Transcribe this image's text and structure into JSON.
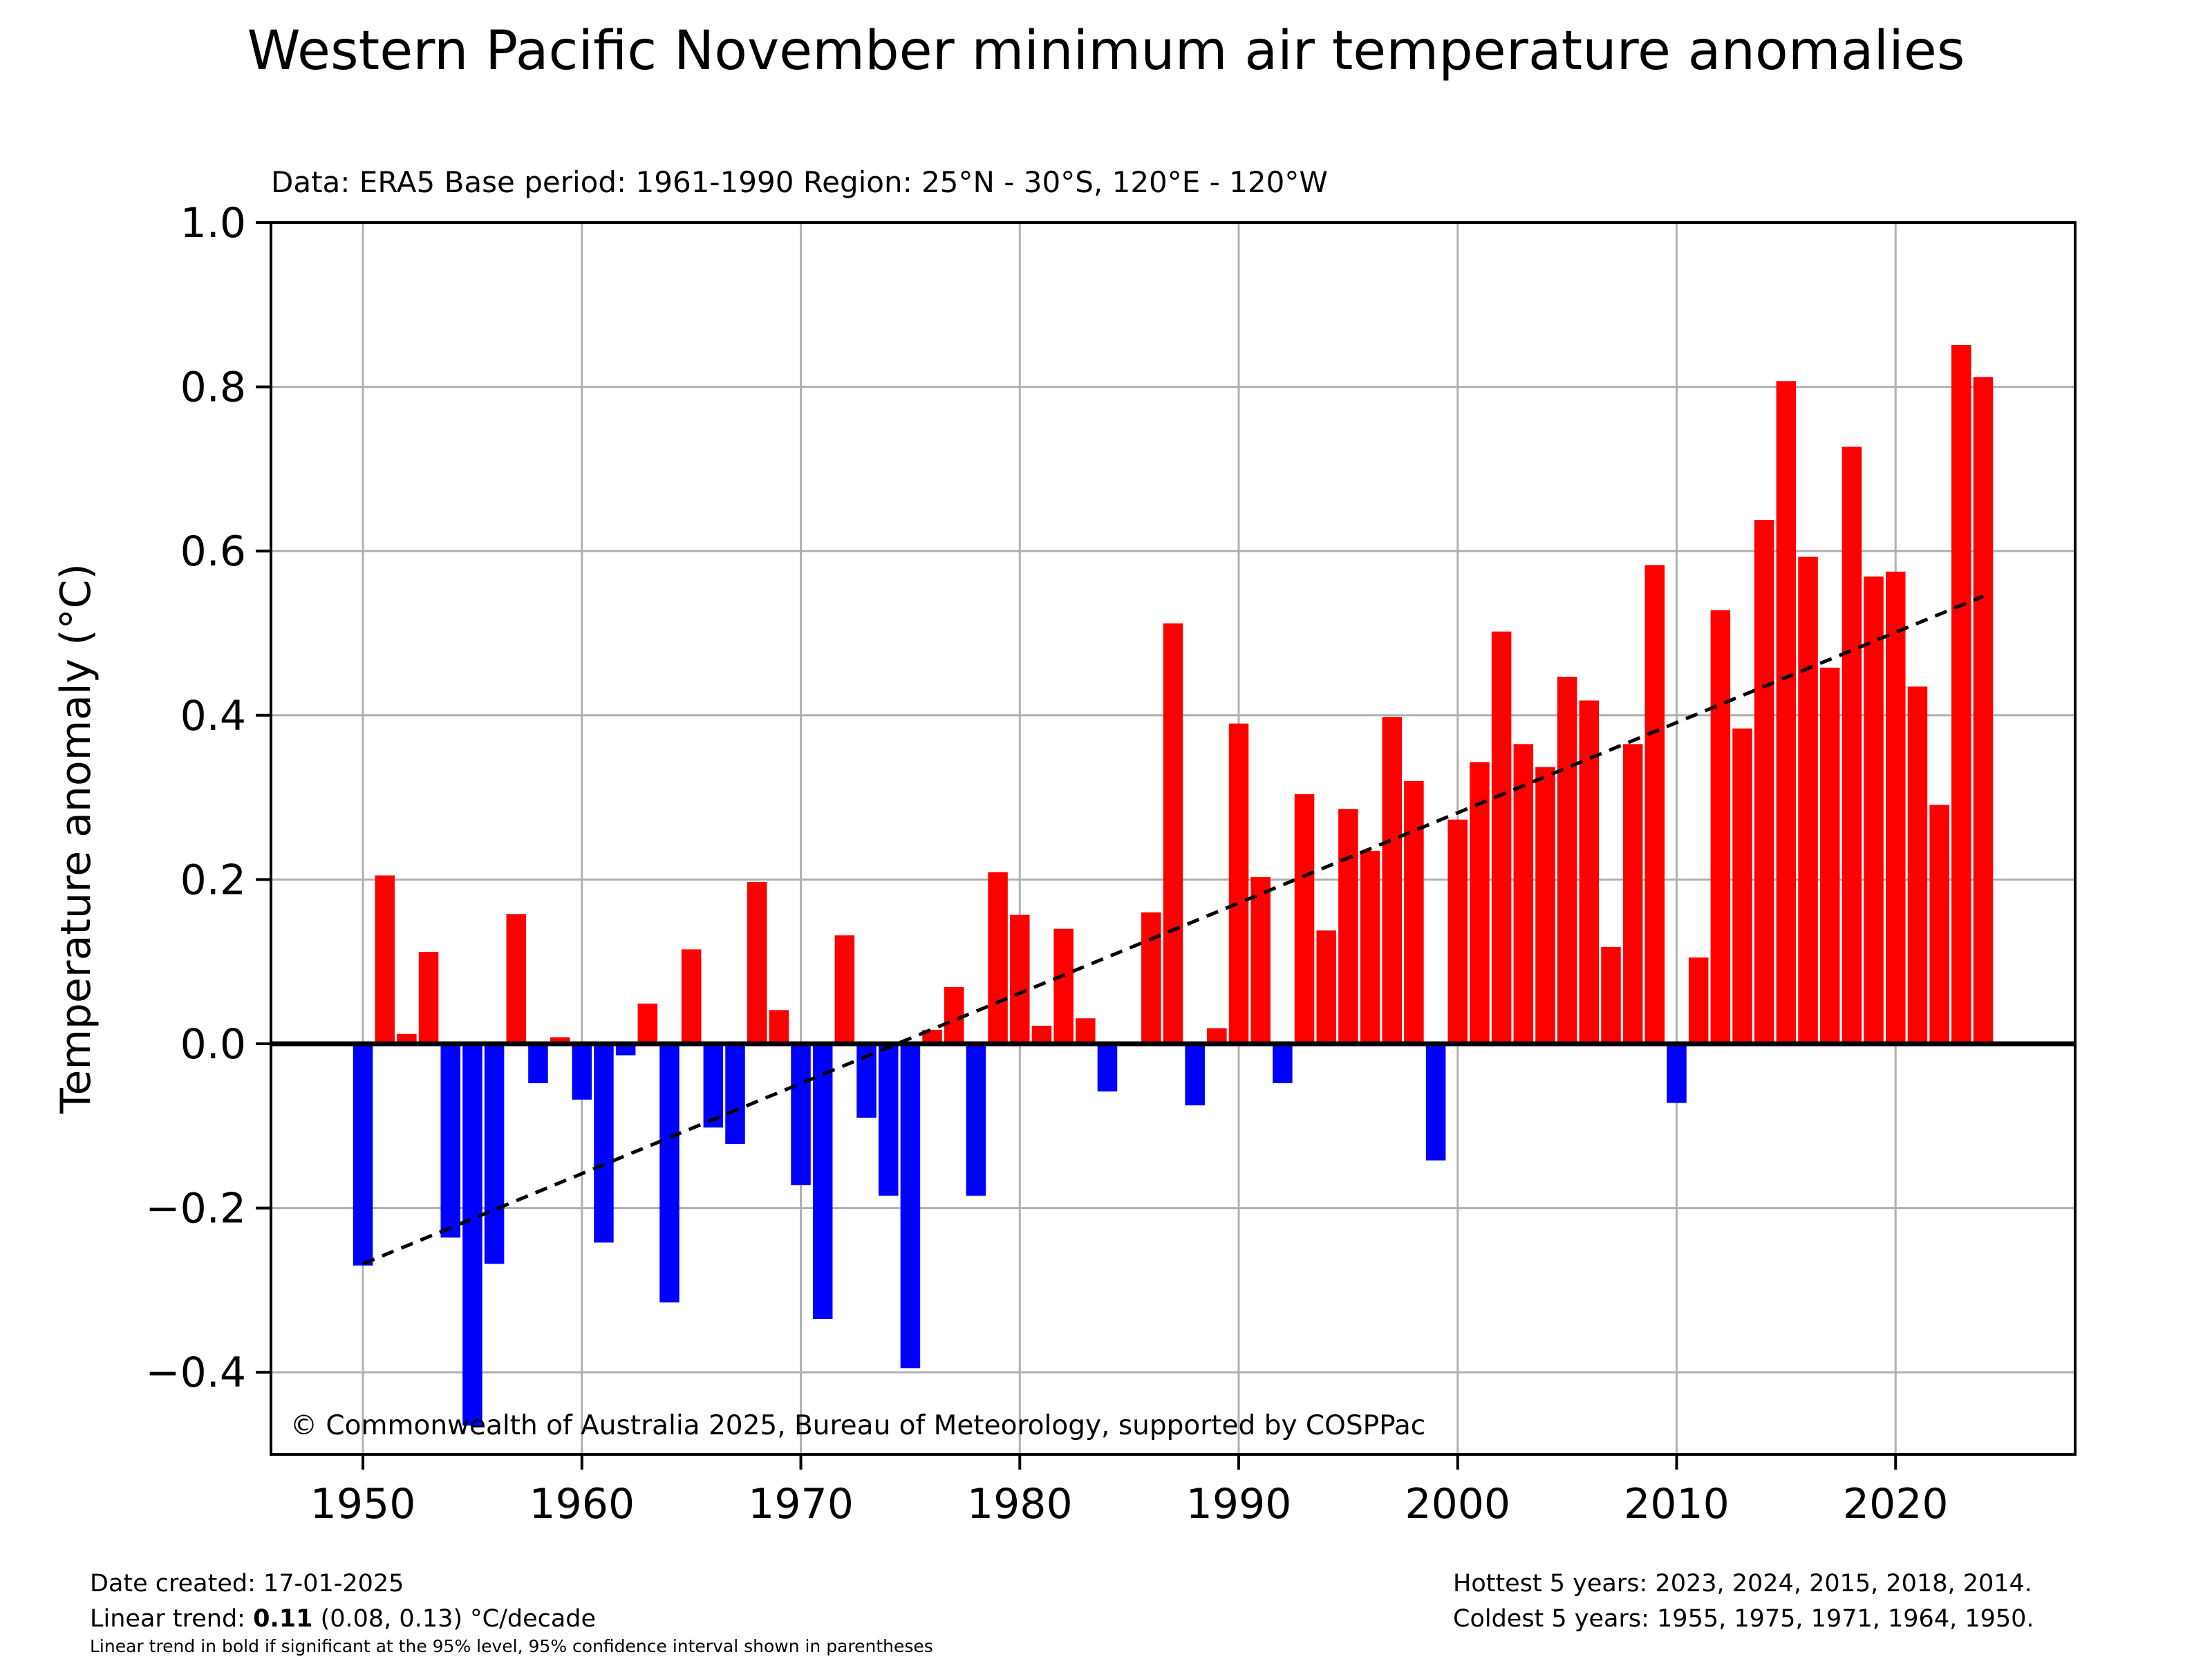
{
  "chart_data": {
    "type": "bar",
    "title": "Western Pacific November minimum air temperature anomalies",
    "subtitle": "Data: ERA5  Base period: 1961-1990  Region: 25°N - 30°S, 120°E - 120°W",
    "xlabel": "",
    "ylabel": "Temperature anomaly (°C)",
    "xlim": [
      1945.8,
      2028.2
    ],
    "ylim": [
      -0.5,
      1.0
    ],
    "x_ticks": [
      1950,
      1960,
      1970,
      1980,
      1990,
      2000,
      2010,
      2020
    ],
    "x_tick_labels": [
      "1950",
      "1960",
      "1970",
      "1980",
      "1990",
      "2000",
      "2010",
      "2020"
    ],
    "y_ticks": [
      -0.4,
      -0.2,
      0.0,
      0.2,
      0.4,
      0.6,
      0.8,
      1.0
    ],
    "y_tick_labels": [
      "−0.4",
      "−0.2",
      "0.0",
      "0.2",
      "0.4",
      "0.6",
      "0.8",
      "1.0"
    ],
    "grid": true,
    "positive_color": "#ff0000",
    "negative_color": "#0000ff",
    "trend_color": "#000000",
    "years": [
      1950,
      1951,
      1952,
      1953,
      1954,
      1955,
      1956,
      1957,
      1958,
      1959,
      1960,
      1961,
      1962,
      1963,
      1964,
      1965,
      1966,
      1967,
      1968,
      1969,
      1970,
      1971,
      1972,
      1973,
      1974,
      1975,
      1976,
      1977,
      1978,
      1979,
      1980,
      1981,
      1982,
      1983,
      1984,
      1985,
      1986,
      1987,
      1988,
      1989,
      1990,
      1991,
      1992,
      1993,
      1994,
      1995,
      1996,
      1997,
      1998,
      1999,
      2000,
      2001,
      2002,
      2003,
      2004,
      2005,
      2006,
      2007,
      2008,
      2009,
      2010,
      2011,
      2012,
      2013,
      2014,
      2015,
      2016,
      2017,
      2018,
      2019,
      2020,
      2021,
      2022,
      2023,
      2024
    ],
    "values": [
      -0.27,
      0.205,
      0.012,
      0.112,
      -0.236,
      -0.465,
      -0.268,
      0.158,
      -0.048,
      0.008,
      -0.068,
      -0.242,
      -0.014,
      0.049,
      -0.315,
      0.115,
      -0.102,
      -0.122,
      0.197,
      0.041,
      -0.172,
      -0.335,
      0.132,
      -0.09,
      -0.185,
      -0.395,
      0.017,
      0.069,
      -0.185,
      0.209,
      0.157,
      0.022,
      0.14,
      0.031,
      -0.058,
      0.0,
      0.16,
      0.512,
      -0.075,
      0.019,
      0.39,
      0.203,
      -0.048,
      0.304,
      0.138,
      0.286,
      0.235,
      0.398,
      0.32,
      -0.142,
      0.273,
      0.343,
      0.502,
      0.365,
      0.337,
      0.447,
      0.418,
      0.118,
      0.365,
      0.583,
      -0.072,
      0.105,
      0.528,
      0.384,
      0.638,
      0.807,
      0.593,
      0.458,
      0.727,
      0.569,
      0.575,
      0.435,
      0.291,
      0.851,
      0.812
    ],
    "trend": {
      "x": [
        1950,
        2024
      ],
      "y": [
        -0.268,
        0.545
      ]
    },
    "annotation": "© Commonwealth of Australia 2025, Bureau of Meteorology, supported by COSPPac"
  },
  "footer": {
    "date_created": "Date created: 17-01-2025",
    "trend_prefix": "Linear trend: ",
    "trend_value": "0.11",
    "trend_suffix": " (0.08, 0.13) °C/decade",
    "trend_note": "Linear trend in bold if significant at the 95% level, 95% confidence interval shown in parentheses",
    "hottest": "Hottest 5 years: 2023, 2024, 2015, 2018, 2014.",
    "coldest": "Coldest 5 years: 1955, 1975, 1971, 1964, 1950."
  }
}
